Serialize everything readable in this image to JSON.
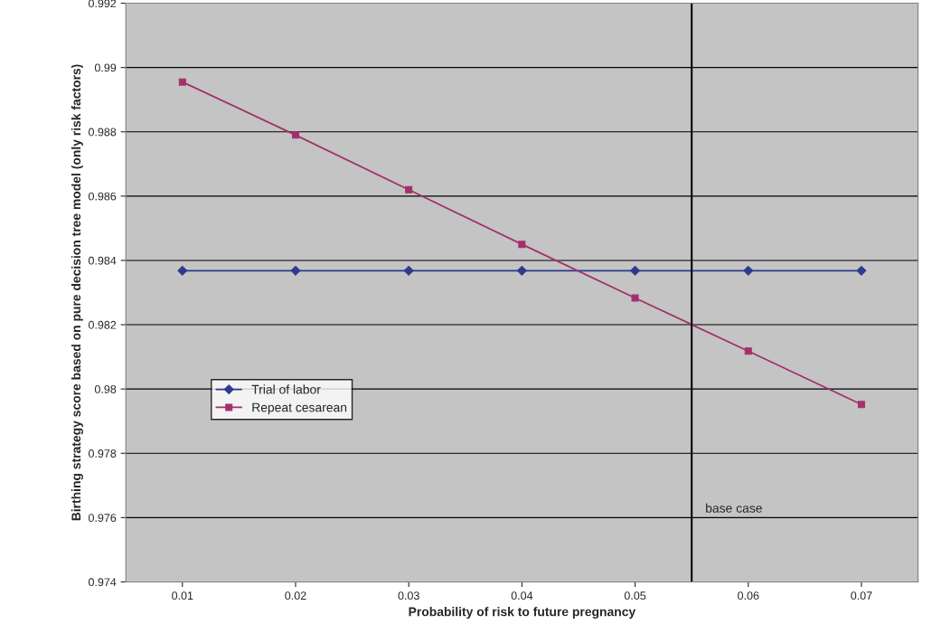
{
  "chart_data": {
    "type": "line",
    "xlabel": "Probability of risk to future pregnancy",
    "ylabel": "Birthing strategy score based on pure decision tree model (only risk factors)",
    "x": [
      0.01,
      0.02,
      0.03,
      0.04,
      0.05,
      0.06,
      0.07
    ],
    "series": [
      {
        "name": "Trial of labor",
        "color": "#2e3a8c",
        "marker": "diamond",
        "values": [
          0.98368,
          0.98368,
          0.98368,
          0.98368,
          0.98368,
          0.98368,
          0.98368
        ]
      },
      {
        "name": "Repeat cesarean",
        "color": "#a3306c",
        "marker": "square",
        "values": [
          0.98955,
          0.9879,
          0.9862,
          0.9845,
          0.98283,
          0.98118,
          0.97952
        ]
      }
    ],
    "xlim": [
      0.005,
      0.075
    ],
    "xticks": [
      0.01,
      0.02,
      0.03,
      0.04,
      0.05,
      0.06,
      0.07
    ],
    "ylim": [
      0.974,
      0.992
    ],
    "yticks": [
      0.974,
      0.976,
      0.978,
      0.98,
      0.982,
      0.984,
      0.986,
      0.988,
      0.99,
      0.992
    ],
    "ref_lines": [
      {
        "axis": "x",
        "value": 0.055,
        "label": "base case",
        "color": "#000000"
      }
    ],
    "grid": "y",
    "legend": "lower left",
    "line_style": "solid"
  }
}
